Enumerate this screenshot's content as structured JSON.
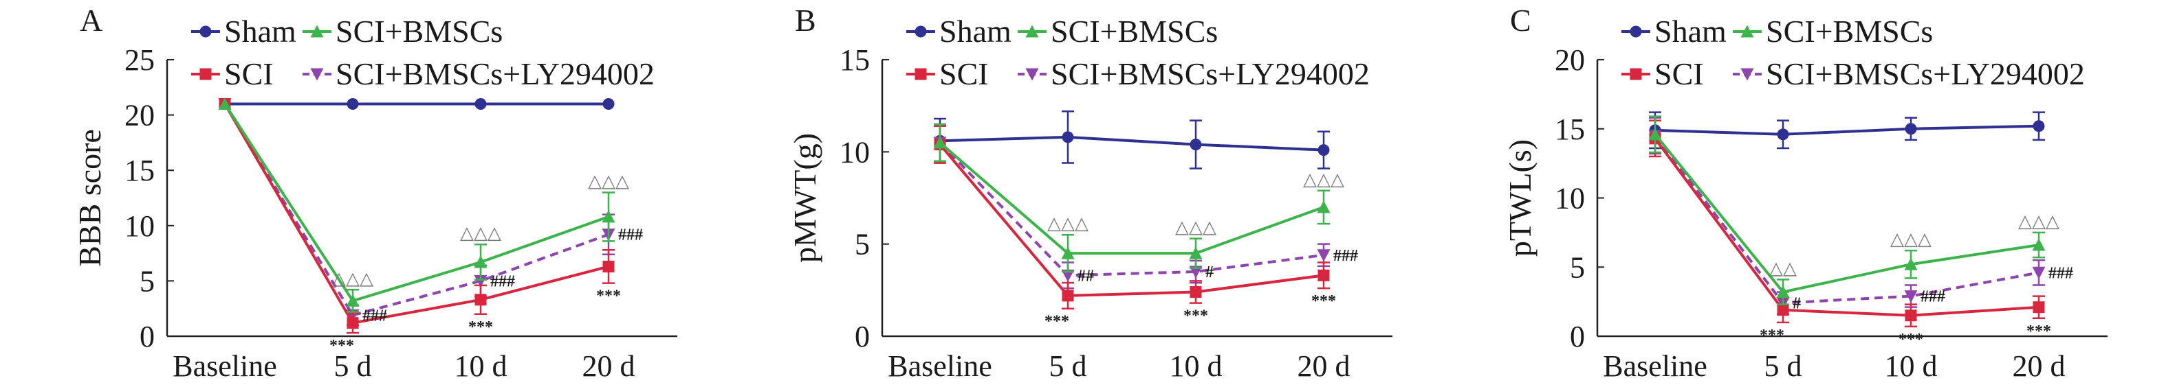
{
  "chart_data": [
    {
      "type": "line",
      "panel_label": "A",
      "ylabel": "BBB score",
      "xlabel": "",
      "categories": [
        "Baseline",
        "5 d",
        "10 d",
        "20 d"
      ],
      "ylim": [
        0,
        25
      ],
      "yticks": [
        0,
        5,
        10,
        15,
        20,
        25
      ],
      "series": [
        {
          "name": "Sham",
          "color": "#2e3192",
          "marker": "circle",
          "dashed": false,
          "values": [
            21,
            21,
            21,
            21
          ],
          "err": [
            0,
            0,
            0,
            0
          ]
        },
        {
          "name": "SCI+BMSCs",
          "color": "#3cb44b",
          "marker": "triangle",
          "dashed": false,
          "values": [
            21,
            3.2,
            6.7,
            10.8
          ],
          "err": [
            0,
            1.0,
            1.6,
            2.2
          ],
          "annotations": [
            "",
            "△△△",
            "△△△",
            "△△△"
          ]
        },
        {
          "name": "SCI",
          "color": "#d7263d",
          "marker": "square",
          "dashed": false,
          "values": [
            21,
            1.2,
            3.3,
            6.3
          ],
          "err": [
            0,
            0.9,
            1.3,
            1.5
          ],
          "annotations": [
            "",
            "***",
            "***",
            "***"
          ]
        },
        {
          "name": "SCI+BMSCs+LY294002",
          "color": "#8e44ad",
          "marker": "inverted-triangle",
          "dashed": true,
          "values": [
            21,
            1.9,
            5.0,
            9.2
          ],
          "err": [
            0,
            0.9,
            1.4,
            1.8
          ],
          "annotations": [
            "",
            "###",
            "###",
            "###"
          ]
        }
      ]
    },
    {
      "type": "line",
      "panel_label": "B",
      "ylabel": "pMWT(g)",
      "xlabel": "",
      "categories": [
        "Baseline",
        "5 d",
        "10 d",
        "20 d"
      ],
      "ylim": [
        0,
        15
      ],
      "yticks": [
        0,
        5,
        10,
        15
      ],
      "series": [
        {
          "name": "Sham",
          "color": "#2e3192",
          "marker": "circle",
          "dashed": false,
          "values": [
            10.6,
            10.8,
            10.4,
            10.1
          ],
          "err": [
            1.2,
            1.4,
            1.3,
            1.0
          ]
        },
        {
          "name": "SCI+BMSCs",
          "color": "#3cb44b",
          "marker": "triangle",
          "dashed": false,
          "values": [
            10.5,
            4.5,
            4.5,
            7.0
          ],
          "err": [
            1.0,
            1.0,
            0.8,
            0.9
          ],
          "annotations": [
            "",
            "△△△",
            "△△△",
            "△△△"
          ]
        },
        {
          "name": "SCI",
          "color": "#d7263d",
          "marker": "square",
          "dashed": false,
          "values": [
            10.4,
            2.2,
            2.4,
            3.3
          ],
          "err": [
            1.0,
            0.7,
            0.6,
            0.7
          ],
          "annotations": [
            "",
            "***",
            "***",
            "***"
          ]
        },
        {
          "name": "SCI+BMSCs+LY294002",
          "color": "#8e44ad",
          "marker": "inverted-triangle",
          "dashed": true,
          "values": [
            10.5,
            3.3,
            3.5,
            4.4
          ],
          "err": [
            1.0,
            0.7,
            0.6,
            0.6
          ],
          "annotations": [
            "",
            "##",
            "#",
            "###"
          ]
        }
      ]
    },
    {
      "type": "line",
      "panel_label": "C",
      "ylabel": "pTWL(s)",
      "xlabel": "",
      "categories": [
        "Baseline",
        "5 d",
        "10 d",
        "20 d"
      ],
      "ylim": [
        0,
        20
      ],
      "yticks": [
        0,
        5,
        10,
        15,
        20
      ],
      "series": [
        {
          "name": "Sham",
          "color": "#2e3192",
          "marker": "circle",
          "dashed": false,
          "values": [
            14.9,
            14.6,
            15.0,
            15.2
          ],
          "err": [
            1.3,
            1.0,
            0.8,
            1.0
          ]
        },
        {
          "name": "SCI+BMSCs",
          "color": "#3cb44b",
          "marker": "triangle",
          "dashed": false,
          "values": [
            14.6,
            3.2,
            5.2,
            6.6
          ],
          "err": [
            1.3,
            0.9,
            1.0,
            0.9
          ],
          "annotations": [
            "",
            "△△",
            "△△△",
            "△△△"
          ]
        },
        {
          "name": "SCI",
          "color": "#d7263d",
          "marker": "square",
          "dashed": false,
          "values": [
            14.3,
            1.9,
            1.5,
            2.1
          ],
          "err": [
            1.3,
            0.9,
            0.8,
            0.8
          ],
          "annotations": [
            "",
            "***",
            "***",
            "***"
          ]
        },
        {
          "name": "SCI+BMSCs+LY294002",
          "color": "#8e44ad",
          "marker": "inverted-triangle",
          "dashed": true,
          "values": [
            14.5,
            2.4,
            2.9,
            4.6
          ],
          "err": [
            1.3,
            0.8,
            0.8,
            0.9
          ],
          "annotations": [
            "",
            "#",
            "###",
            "###"
          ]
        }
      ]
    }
  ]
}
